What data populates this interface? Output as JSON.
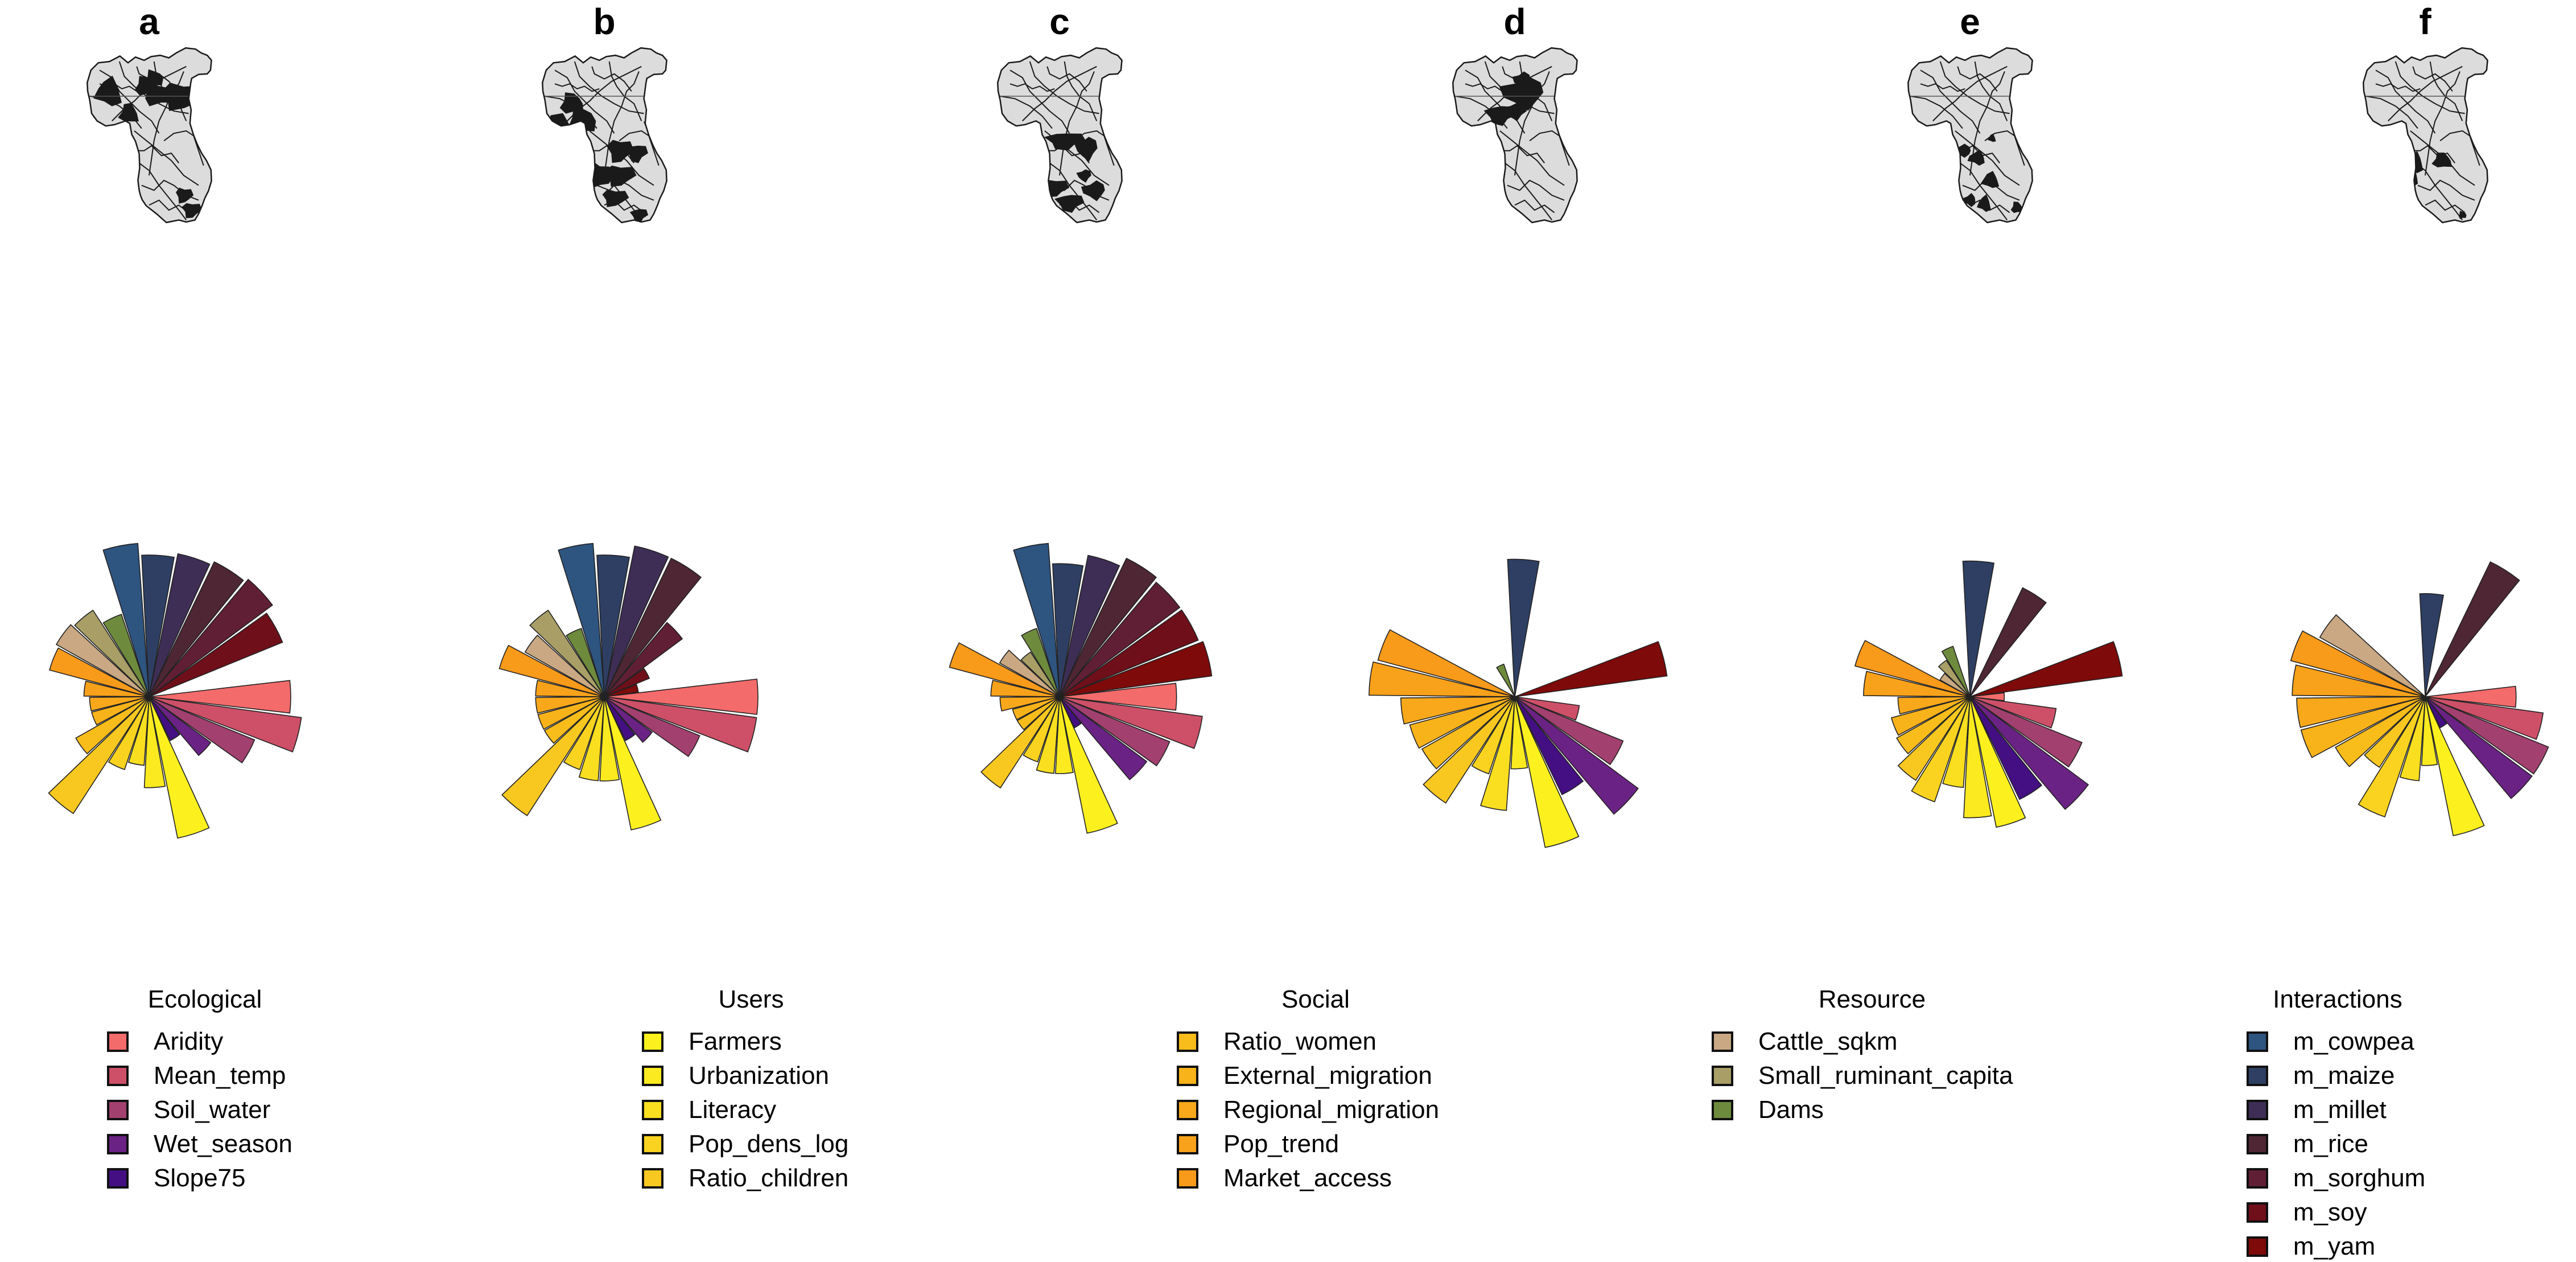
{
  "panels": [
    "a",
    "b",
    "c",
    "d",
    "e",
    "f"
  ],
  "variables": [
    {
      "name": "Aridity",
      "color": "#F46B6B",
      "group": "Ecological"
    },
    {
      "name": "Mean_temp",
      "color": "#CD5068",
      "group": "Ecological"
    },
    {
      "name": "Soil_water",
      "color": "#A2406F",
      "group": "Ecological"
    },
    {
      "name": "Wet_season",
      "color": "#6B2285",
      "group": "Ecological"
    },
    {
      "name": "Slope75",
      "color": "#430F82",
      "group": "Ecological"
    },
    {
      "name": "Farmers",
      "color": "#FCF11E",
      "group": "Users"
    },
    {
      "name": "Urbanization",
      "color": "#FBEA1F",
      "group": "Users"
    },
    {
      "name": "Literacy",
      "color": "#FADF20",
      "group": "Users"
    },
    {
      "name": "Pop_dens_log",
      "color": "#F9D320",
      "group": "Users"
    },
    {
      "name": "Ratio_children",
      "color": "#F8C820",
      "group": "Users"
    },
    {
      "name": "Ratio_women",
      "color": "#F8BC1B",
      "group": "Social"
    },
    {
      "name": "External_migration",
      "color": "#F8B21A",
      "group": "Social"
    },
    {
      "name": "Regional_migration",
      "color": "#F8A81A",
      "group": "Social"
    },
    {
      "name": "Pop_trend",
      "color": "#F8A11A",
      "group": "Social"
    },
    {
      "name": "Market_access",
      "color": "#F89A1A",
      "group": "Social"
    },
    {
      "name": "Cattle_sqkm",
      "color": "#C9A883",
      "group": "Resource"
    },
    {
      "name": "Small_ruminant_capita",
      "color": "#A99F66",
      "group": "Resource"
    },
    {
      "name": "Dams",
      "color": "#6E8B3D",
      "group": "Resource"
    },
    {
      "name": "m_cowpea",
      "color": "#2E5480",
      "group": "Interactions"
    },
    {
      "name": "m_maize",
      "color": "#2E3F63",
      "group": "Interactions"
    },
    {
      "name": "m_millet",
      "color": "#3E2E56",
      "group": "Interactions"
    },
    {
      "name": "m_rice",
      "color": "#4E2634",
      "group": "Interactions"
    },
    {
      "name": "m_sorghum",
      "color": "#601F34",
      "group": "Interactions"
    },
    {
      "name": "m_soy",
      "color": "#6E0F1A",
      "group": "Interactions"
    },
    {
      "name": "m_yam",
      "color": "#7E0A0A",
      "group": "Interactions"
    }
  ],
  "legend_groups": [
    "Ecological",
    "Users",
    "Social",
    "Resource",
    "Interactions"
  ],
  "chart_data": {
    "type": "bar",
    "subtype": "radial (rose) bar chart per panel",
    "categories": [
      "Aridity",
      "Mean_temp",
      "Soil_water",
      "Wet_season",
      "Slope75",
      "Farmers",
      "Urbanization",
      "Literacy",
      "Pop_dens_log",
      "Ratio_children",
      "Ratio_women",
      "External_migration",
      "Regional_migration",
      "Pop_trend",
      "Market_access",
      "Cattle_sqkm",
      "Small_ruminant_capita",
      "Dams",
      "m_cowpea",
      "m_maize",
      "m_millet",
      "m_rice",
      "m_sorghum",
      "m_soy",
      "m_yam"
    ],
    "series": [
      {
        "name": "a",
        "values": [
          0.85,
          1.0,
          0.55,
          0.25,
          0.1,
          0.88,
          0.35,
          0.2,
          0.25,
          0.82,
          0.3,
          0.15,
          0.15,
          0.18,
          0.45,
          0.48,
          0.45,
          0.32,
          1.0,
          0.85,
          0.9,
          0.95,
          1.0,
          0.88,
          0.0
        ]
      },
      {
        "name": "b",
        "values": [
          1.0,
          1.0,
          0.45,
          0.15,
          0.1,
          0.78,
          0.3,
          0.3,
          0.25,
          0.85,
          0.2,
          0.2,
          0.2,
          0.2,
          0.5,
          0.35,
          0.45,
          0.22,
          1.0,
          0.85,
          1.0,
          1.0,
          0.4,
          0.1,
          0.05
        ]
      },
      {
        "name": "c",
        "values": [
          0.58,
          0.88,
          0.6,
          0.5,
          0.05,
          0.82,
          0.25,
          0.25,
          0.2,
          0.5,
          0.1,
          0.1,
          0.15,
          0.2,
          0.55,
          0.2,
          0.12,
          0.22,
          1.0,
          0.75,
          0.88,
          1.0,
          0.95,
          0.95,
          1.0
        ]
      },
      {
        "name": "d",
        "values": [
          0.0,
          0.18,
          0.58,
          1.0,
          0.5,
          1.0,
          0.22,
          0.55,
          0.28,
          0.68,
          0.48,
          0.5,
          0.55,
          0.9,
          0.85,
          0.0,
          0.0,
          0.05,
          0.0,
          0.8,
          0.0,
          0.0,
          0.0,
          0.0,
          1.0
        ]
      },
      {
        "name": "e",
        "values": [
          0.05,
          0.32,
          0.62,
          0.92,
          0.55,
          0.75,
          0.62,
          0.35,
          0.52,
          0.42,
          0.3,
          0.28,
          0.22,
          0.48,
          0.6,
          0.05,
          0.08,
          0.12,
          0.0,
          0.78,
          0.0,
          0.62,
          0.0,
          0.0,
          1.0
        ]
      },
      {
        "name": "f",
        "values": [
          0.35,
          0.6,
          0.75,
          0.75,
          0.05,
          0.85,
          0.2,
          0.3,
          0.68,
          0.3,
          0.45,
          0.7,
          0.7,
          0.75,
          0.82,
          0.62,
          0.0,
          0.0,
          0.0,
          0.45,
          0.0,
          0.95,
          0.0,
          0.0,
          0.0
        ]
      }
    ],
    "title": "",
    "xlabel": "",
    "ylabel": "",
    "legend_placement": "bottom",
    "grid": false
  },
  "maps": {
    "fill_highlight": "#1a1a1a",
    "fill_base": "#dcdcdc",
    "stroke": "#1a1a1a"
  }
}
